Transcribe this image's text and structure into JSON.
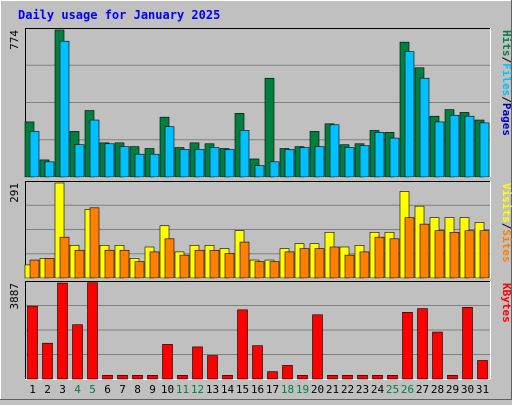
{
  "chart_data": {
    "type": "bar",
    "title": "Daily usage for January 2025",
    "categories": [
      "1",
      "2",
      "3",
      "4",
      "5",
      "6",
      "7",
      "8",
      "9",
      "10",
      "11",
      "12",
      "13",
      "14",
      "15",
      "16",
      "17",
      "18",
      "19",
      "20",
      "21",
      "22",
      "23",
      "24",
      "25",
      "26",
      "27",
      "28",
      "29",
      "30",
      "31"
    ],
    "weekend_days": [
      "4",
      "5",
      "11",
      "12",
      "18",
      "19",
      "25",
      "26"
    ],
    "panels": [
      {
        "id": "hits-files-pages",
        "max_label": "774",
        "ymax": 774,
        "series": [
          {
            "name": "Hits",
            "color": "#008040",
            "values": [
              290,
              90,
              774,
              240,
              350,
              180,
              180,
              160,
              150,
              315,
              155,
              180,
              175,
              150,
              335,
              95,
              520,
              150,
              160,
              240,
              280,
              170,
              175,
              245,
              235,
              710,
              575,
              320,
              355,
              340,
              300
            ]
          },
          {
            "name": "Files",
            "color": "#00c0ff",
            "values": [
              240,
              80,
              715,
              170,
              300,
              175,
              160,
              120,
              120,
              265,
              145,
              145,
              155,
              145,
              245,
              60,
              80,
              145,
              155,
              160,
              275,
              155,
              165,
              235,
              205,
              660,
              520,
              290,
              325,
              320,
              285
            ]
          },
          {
            "name": "Pages",
            "color": "#0000c0",
            "values": [
              0,
              0,
              0,
              0,
              0,
              0,
              0,
              0,
              0,
              0,
              0,
              0,
              0,
              0,
              0,
              0,
              0,
              0,
              0,
              0,
              0,
              0,
              0,
              0,
              0,
              0,
              0,
              0,
              0,
              0,
              0
            ]
          }
        ],
        "legend": [
          "Pages",
          "Files",
          "Hits"
        ]
      },
      {
        "id": "visits-sites",
        "max_label": "291",
        "ymax": 291,
        "series": [
          {
            "name": "Visits",
            "color": "#ffff00",
            "values": [
              40,
              60,
              291,
              100,
              210,
              100,
              100,
              60,
              95,
              160,
              80,
              100,
              100,
              90,
              145,
              55,
              55,
              90,
              105,
              105,
              140,
              95,
              100,
              140,
              140,
              265,
              220,
              185,
              185,
              185,
              170
            ]
          },
          {
            "name": "Sites",
            "color": "#ff8000",
            "values": [
              55,
              60,
              125,
              85,
              215,
              85,
              85,
              50,
              80,
              120,
              70,
              85,
              85,
              75,
              110,
              50,
              50,
              80,
              90,
              90,
              95,
              70,
              80,
              125,
              120,
              185,
              165,
              145,
              140,
              145,
              145
            ]
          }
        ],
        "legend": [
          "Sites",
          "Visits"
        ]
      },
      {
        "id": "kbytes",
        "max_label": "3887",
        "ymax": 3887,
        "series": [
          {
            "name": "KBytes",
            "color": "#ff0000",
            "values": [
              2950,
              1450,
              3887,
              2200,
              3900,
              150,
              150,
              150,
              150,
              1400,
              150,
              1300,
              950,
              150,
              2800,
              1350,
              300,
              550,
              150,
              2600,
              150,
              150,
              150,
              150,
              150,
              2700,
              2850,
              1900,
              150,
              2900,
              750
            ]
          }
        ],
        "legend": [
          "KBytes"
        ]
      }
    ]
  }
}
